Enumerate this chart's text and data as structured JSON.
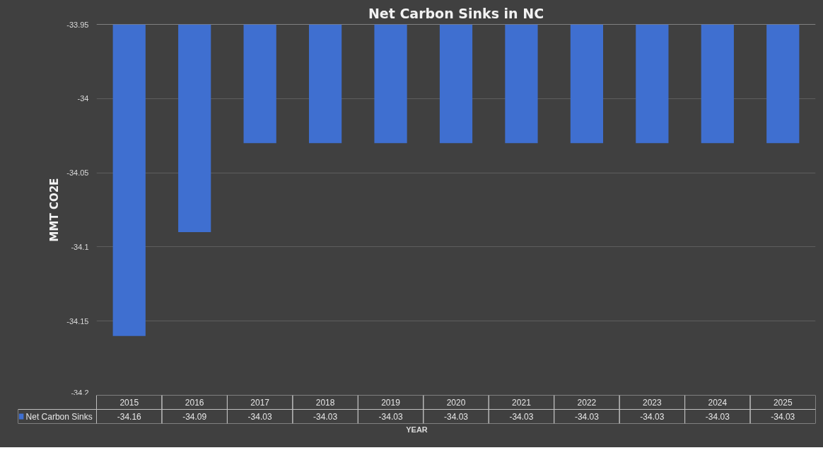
{
  "chart_data": {
    "type": "bar",
    "title": "Net Carbon Sinks in NC",
    "xlabel": "YEAR",
    "ylabel": "MMT CO2E",
    "categories": [
      "2015",
      "2016",
      "2017",
      "2018",
      "2019",
      "2020",
      "2021",
      "2022",
      "2023",
      "2024",
      "2025"
    ],
    "series": [
      {
        "name": "Net Carbon Sinks",
        "color": "#3f6fd0",
        "values": [
          -34.16,
          -34.09,
          -34.03,
          -34.03,
          -34.03,
          -34.03,
          -34.03,
          -34.03,
          -34.03,
          -34.03,
          -34.03
        ]
      }
    ],
    "ylim": [
      -34.2,
      -33.95
    ],
    "yticks": [
      -34.2,
      -34.15,
      -34.1,
      -34.05,
      -34,
      -33.95
    ],
    "grid": "y",
    "legend": "bottom",
    "data_labels": true
  }
}
